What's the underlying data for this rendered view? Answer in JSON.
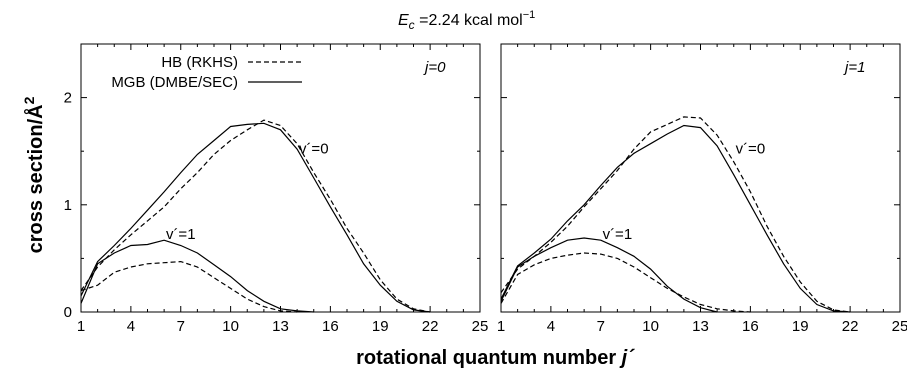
{
  "figure": {
    "title_main": "E",
    "title_sub": "c",
    "title_value": " =2.24 kcal mol",
    "title_sup": "−1",
    "xlabel": "rotational quantum number ",
    "xlabel_var": "j´",
    "ylabel": "cross section/Å",
    "ylabel_sup": "2"
  },
  "chart_data": [
    {
      "type": "line",
      "panel": "left",
      "annotation": "j=0",
      "xlim": [
        1,
        25
      ],
      "ylim": [
        0,
        2.5
      ],
      "xticks": [
        1,
        4,
        7,
        10,
        13,
        16,
        19,
        22,
        25
      ],
      "yticks": [
        0,
        1,
        2
      ],
      "legend": [
        {
          "label": "HB (RKHS)",
          "style": "dashed"
        },
        {
          "label": "MGB (DMBE/SEC)",
          "style": "solid"
        }
      ],
      "legend_position": "top-left",
      "labels": [
        {
          "text": "v´=0",
          "x": 15,
          "y": 1.48
        },
        {
          "text": "v´=1",
          "x": 7,
          "y": 0.68
        }
      ],
      "series": [
        {
          "name": "HB (RKHS)",
          "v": 0,
          "style": "dashed",
          "x": [
            1,
            2,
            3,
            4,
            5,
            6,
            7,
            8,
            9,
            10,
            11,
            12,
            13,
            14,
            15,
            16,
            17,
            18,
            19,
            20,
            21,
            22
          ],
          "y": [
            0.2,
            0.42,
            0.58,
            0.72,
            0.85,
            0.98,
            1.15,
            1.3,
            1.47,
            1.6,
            1.7,
            1.79,
            1.74,
            1.57,
            1.3,
            1.05,
            0.78,
            0.55,
            0.3,
            0.12,
            0.03,
            0.0
          ]
        },
        {
          "name": "MGB (DMBE/SEC)",
          "v": 0,
          "style": "solid",
          "x": [
            1,
            2,
            3,
            4,
            5,
            6,
            7,
            8,
            9,
            10,
            11,
            12,
            13,
            14,
            15,
            16,
            17,
            18,
            19,
            20,
            21,
            22
          ],
          "y": [
            0.15,
            0.47,
            0.62,
            0.78,
            0.95,
            1.12,
            1.3,
            1.47,
            1.6,
            1.73,
            1.75,
            1.76,
            1.7,
            1.52,
            1.25,
            0.98,
            0.72,
            0.45,
            0.25,
            0.1,
            0.02,
            0.0
          ]
        },
        {
          "name": "HB (RKHS)",
          "v": 1,
          "style": "dashed",
          "x": [
            1,
            2,
            3,
            4,
            5,
            6,
            7,
            8,
            9,
            10,
            11,
            12,
            13,
            14
          ],
          "y": [
            0.2,
            0.25,
            0.37,
            0.42,
            0.45,
            0.46,
            0.47,
            0.42,
            0.32,
            0.22,
            0.12,
            0.05,
            0.01,
            0.0
          ]
        },
        {
          "name": "MGB (DMBE/SEC)",
          "v": 1,
          "style": "solid",
          "x": [
            1,
            2,
            3,
            4,
            5,
            6,
            7,
            8,
            9,
            10,
            11,
            12,
            13,
            14,
            15
          ],
          "y": [
            0.08,
            0.45,
            0.55,
            0.62,
            0.63,
            0.67,
            0.62,
            0.55,
            0.44,
            0.33,
            0.2,
            0.1,
            0.03,
            0.01,
            0.0
          ]
        }
      ]
    },
    {
      "type": "line",
      "panel": "right",
      "annotation": "j=1",
      "xlim": [
        1,
        25
      ],
      "ylim": [
        0,
        2.5
      ],
      "xticks": [
        1,
        4,
        7,
        10,
        13,
        16,
        19,
        22,
        25
      ],
      "yticks": [
        0,
        1,
        2
      ],
      "labels": [
        {
          "text": "v´=0",
          "x": 16,
          "y": 1.48
        },
        {
          "text": "v´=1",
          "x": 8,
          "y": 0.68
        }
      ],
      "series": [
        {
          "name": "HB (RKHS)",
          "v": 0,
          "style": "dashed",
          "x": [
            1,
            2,
            3,
            4,
            5,
            6,
            7,
            8,
            9,
            10,
            11,
            12,
            13,
            14,
            15,
            16,
            17,
            18,
            19,
            20,
            21,
            22
          ],
          "y": [
            0.18,
            0.4,
            0.52,
            0.65,
            0.8,
            0.98,
            1.15,
            1.32,
            1.52,
            1.68,
            1.75,
            1.82,
            1.81,
            1.65,
            1.4,
            1.12,
            0.8,
            0.52,
            0.28,
            0.1,
            0.02,
            0.0
          ]
        },
        {
          "name": "MGB (DMBE/SEC)",
          "v": 0,
          "style": "solid",
          "x": [
            1,
            2,
            3,
            4,
            5,
            6,
            7,
            8,
            9,
            10,
            11,
            12,
            13,
            14,
            15,
            16,
            17,
            18,
            19,
            20,
            21,
            22
          ],
          "y": [
            0.12,
            0.43,
            0.55,
            0.68,
            0.85,
            1.0,
            1.18,
            1.35,
            1.48,
            1.57,
            1.66,
            1.74,
            1.72,
            1.55,
            1.28,
            1.0,
            0.72,
            0.45,
            0.22,
            0.07,
            0.01,
            0.0
          ]
        },
        {
          "name": "HB (RKHS)",
          "v": 1,
          "style": "dashed",
          "x": [
            1,
            2,
            3,
            4,
            5,
            6,
            7,
            8,
            9,
            10,
            11,
            12,
            13,
            14,
            15,
            16
          ],
          "y": [
            0.08,
            0.35,
            0.44,
            0.5,
            0.53,
            0.55,
            0.54,
            0.5,
            0.42,
            0.32,
            0.22,
            0.14,
            0.07,
            0.03,
            0.01,
            0.0
          ]
        },
        {
          "name": "MGB (DMBE/SEC)",
          "v": 1,
          "style": "solid",
          "x": [
            1,
            2,
            3,
            4,
            5,
            6,
            7,
            8,
            9,
            10,
            11,
            12,
            13,
            14
          ],
          "y": [
            0.1,
            0.42,
            0.52,
            0.6,
            0.67,
            0.69,
            0.67,
            0.6,
            0.52,
            0.4,
            0.24,
            0.12,
            0.04,
            0.0
          ]
        }
      ]
    }
  ]
}
